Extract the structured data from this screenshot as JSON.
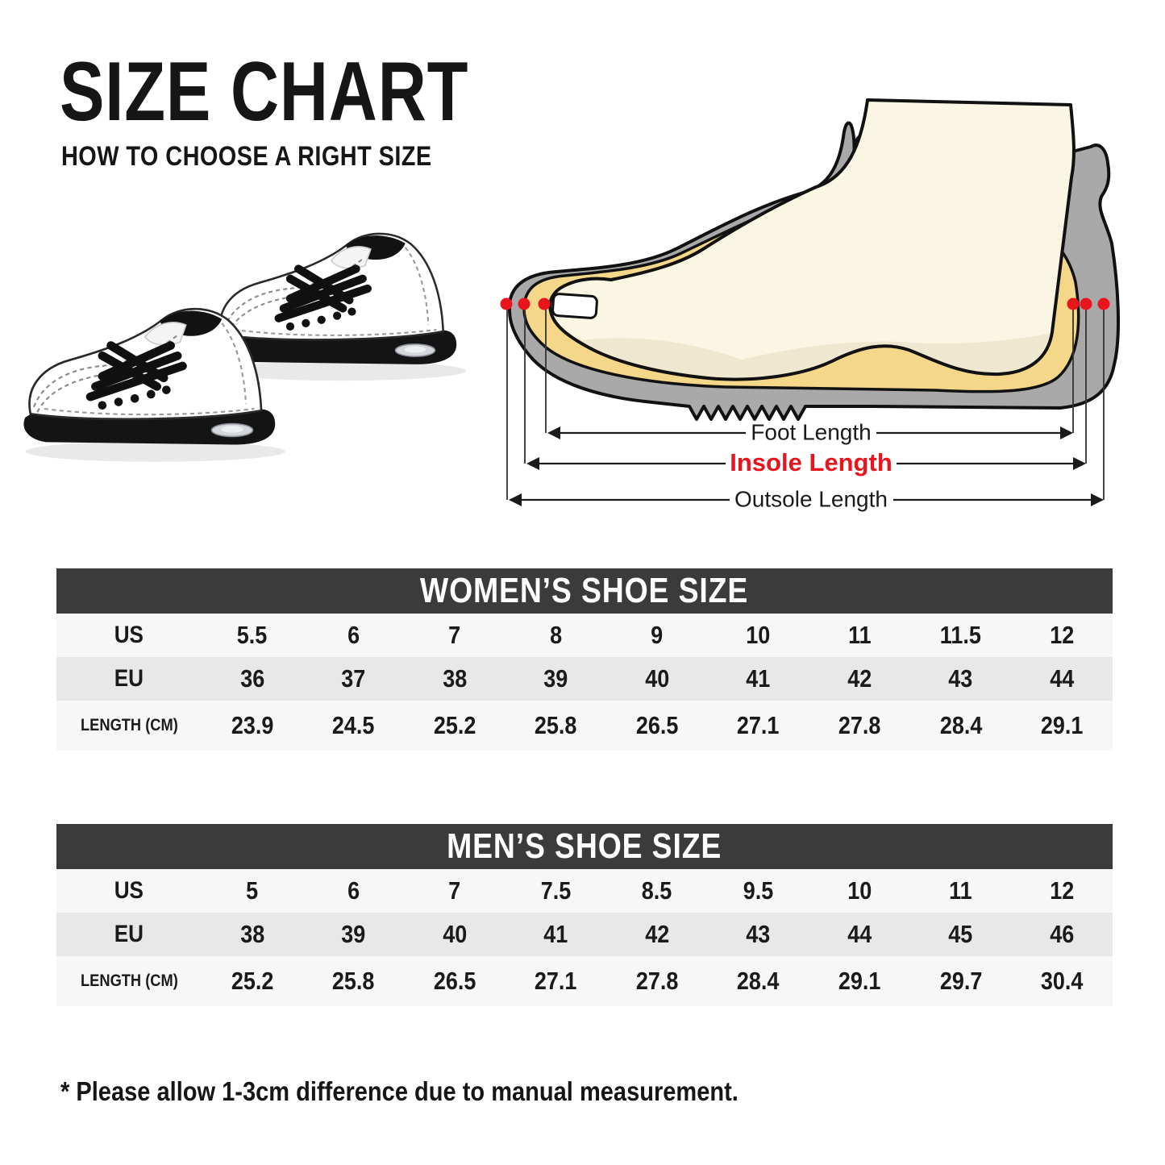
{
  "page": {
    "title": "SIZE CHART",
    "subtitle": "HOW TO CHOOSE A RIGHT SIZE",
    "footnote": "* Please allow 1-3cm difference due to manual measurement."
  },
  "diagram": {
    "foot_length_label": "Foot Length",
    "insole_length_label": "Insole Length",
    "outsole_length_label": "Outsole Length",
    "colors": {
      "accent_red": "#e8151d",
      "shoe_gray": "#a9a9a9",
      "insole_yellow": "#f5d78a",
      "foot_cream": "#fbf6e3",
      "foot_shade": "#efe8d1",
      "outline_black": "#111111",
      "table_header_bg": "#3b3b3b",
      "row_light": "#f7f7f7",
      "row_gray": "#e8e8e8"
    }
  },
  "tables": [
    {
      "title": "WOMEN’S SHOE SIZE",
      "rows": [
        {
          "label": "US",
          "values": [
            "5.5",
            "6",
            "7",
            "8",
            "9",
            "10",
            "11",
            "11.5",
            "12"
          ]
        },
        {
          "label": "EU",
          "values": [
            "36",
            "37",
            "38",
            "39",
            "40",
            "41",
            "42",
            "43",
            "44"
          ]
        },
        {
          "label": "LENGTH (CM)",
          "values": [
            "23.9",
            "24.5",
            "25.2",
            "25.8",
            "26.5",
            "27.1",
            "27.8",
            "28.4",
            "29.1"
          ]
        }
      ]
    },
    {
      "title": "MEN’S SHOE SIZE",
      "rows": [
        {
          "label": "US",
          "values": [
            "5",
            "6",
            "7",
            "7.5",
            "8.5",
            "9.5",
            "10",
            "11",
            "12"
          ]
        },
        {
          "label": "EU",
          "values": [
            "38",
            "39",
            "40",
            "41",
            "42",
            "43",
            "44",
            "45",
            "46"
          ]
        },
        {
          "label": "LENGTH (CM)",
          "values": [
            "25.2",
            "25.8",
            "26.5",
            "27.1",
            "27.8",
            "28.4",
            "29.1",
            "29.7",
            "30.4"
          ]
        }
      ]
    }
  ],
  "chart_data": [
    {
      "type": "table",
      "title": "WOMEN’S SHOE SIZE",
      "row_headers": [
        "US",
        "EU",
        "LENGTH (CM)"
      ],
      "rows": [
        [
          "5.5",
          "6",
          "7",
          "8",
          "9",
          "10",
          "11",
          "11.5",
          "12"
        ],
        [
          "36",
          "37",
          "38",
          "39",
          "40",
          "41",
          "42",
          "43",
          "44"
        ],
        [
          "23.9",
          "24.5",
          "25.2",
          "25.8",
          "26.5",
          "27.1",
          "27.8",
          "28.4",
          "29.1"
        ]
      ]
    },
    {
      "type": "table",
      "title": "MEN’S SHOE SIZE",
      "row_headers": [
        "US",
        "EU",
        "LENGTH (CM)"
      ],
      "rows": [
        [
          "5",
          "6",
          "7",
          "7.5",
          "8.5",
          "9.5",
          "10",
          "11",
          "12"
        ],
        [
          "38",
          "39",
          "40",
          "41",
          "42",
          "43",
          "44",
          "45",
          "46"
        ],
        [
          "25.2",
          "25.8",
          "26.5",
          "27.1",
          "27.8",
          "28.4",
          "29.1",
          "29.7",
          "30.4"
        ]
      ]
    }
  ]
}
